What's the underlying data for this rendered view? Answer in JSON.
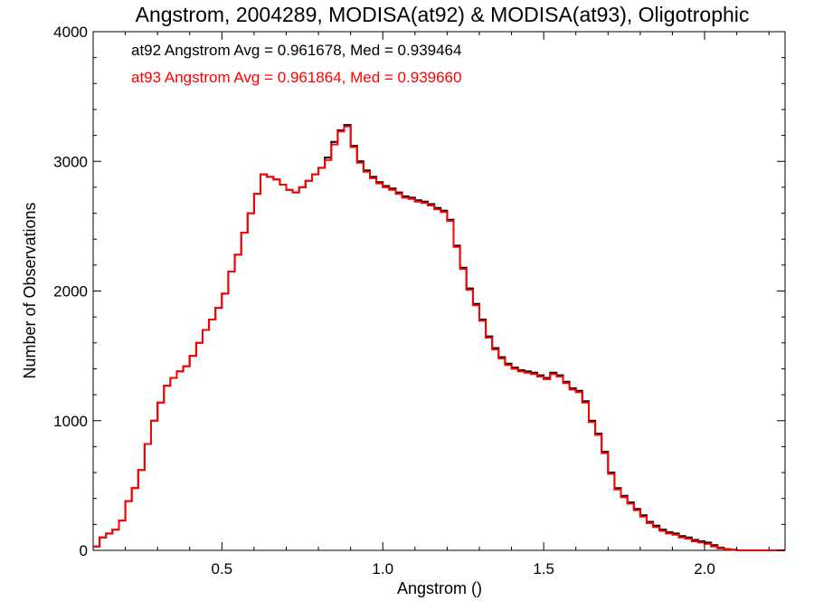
{
  "chart_data": {
    "type": "line",
    "step": true,
    "title": "Angstrom, 2004289, MODISA(at92) & MODISA(at93), Oligotrophic",
    "xlabel": "Angstrom ()",
    "ylabel": "Number of Observations",
    "xlim": [
      0.1,
      2.25
    ],
    "ylim": [
      0,
      4000
    ],
    "xticks": [
      0.5,
      1.0,
      1.5,
      2.0
    ],
    "xtick_labels": [
      "0.5",
      "1.0",
      "1.5",
      "2.0"
    ],
    "yticks": [
      0,
      1000,
      2000,
      3000,
      4000
    ],
    "ytick_labels": [
      "0",
      "1000",
      "2000",
      "3000",
      "4000"
    ],
    "grid": false,
    "annotations": [
      {
        "text": "at92 Angstrom Avg = 0.961678, Med = 0.939464",
        "color": "#000000"
      },
      {
        "text": "at93 Angstrom Avg = 0.961864, Med = 0.939660",
        "color": "#ff0000"
      }
    ],
    "x": [
      0.1,
      0.12,
      0.14,
      0.16,
      0.18,
      0.2,
      0.22,
      0.24,
      0.26,
      0.28,
      0.3,
      0.32,
      0.34,
      0.36,
      0.38,
      0.4,
      0.42,
      0.44,
      0.46,
      0.48,
      0.5,
      0.52,
      0.54,
      0.56,
      0.58,
      0.6,
      0.62,
      0.64,
      0.66,
      0.68,
      0.7,
      0.72,
      0.74,
      0.76,
      0.78,
      0.8,
      0.82,
      0.84,
      0.86,
      0.88,
      0.9,
      0.92,
      0.94,
      0.96,
      0.98,
      1.0,
      1.02,
      1.04,
      1.06,
      1.08,
      1.1,
      1.12,
      1.14,
      1.16,
      1.18,
      1.2,
      1.22,
      1.24,
      1.26,
      1.28,
      1.3,
      1.32,
      1.34,
      1.36,
      1.38,
      1.4,
      1.42,
      1.44,
      1.46,
      1.48,
      1.5,
      1.52,
      1.54,
      1.56,
      1.58,
      1.6,
      1.62,
      1.64,
      1.66,
      1.68,
      1.7,
      1.72,
      1.74,
      1.76,
      1.78,
      1.8,
      1.82,
      1.84,
      1.86,
      1.88,
      1.9,
      1.92,
      1.94,
      1.96,
      1.98,
      2.0,
      2.02,
      2.04,
      2.06,
      2.08,
      2.1,
      2.12,
      2.14,
      2.16,
      2.18,
      2.2,
      2.22,
      2.24
    ],
    "series": [
      {
        "name": "at92",
        "color": "#000000",
        "values": [
          30,
          100,
          130,
          160,
          230,
          380,
          480,
          620,
          820,
          1000,
          1140,
          1270,
          1330,
          1380,
          1420,
          1500,
          1600,
          1700,
          1780,
          1870,
          1980,
          2150,
          2280,
          2450,
          2600,
          2750,
          2900,
          2880,
          2860,
          2820,
          2780,
          2760,
          2800,
          2850,
          2900,
          2950,
          3030,
          3150,
          3240,
          3280,
          3120,
          3000,
          2930,
          2880,
          2840,
          2810,
          2790,
          2760,
          2730,
          2720,
          2700,
          2690,
          2670,
          2640,
          2620,
          2550,
          2350,
          2180,
          2020,
          1900,
          1780,
          1650,
          1560,
          1490,
          1440,
          1410,
          1390,
          1380,
          1370,
          1350,
          1330,
          1370,
          1350,
          1300,
          1250,
          1230,
          1150,
          1000,
          900,
          760,
          600,
          480,
          420,
          370,
          320,
          270,
          220,
          190,
          160,
          140,
          130,
          110,
          100,
          80,
          70,
          60,
          40,
          20,
          10,
          5,
          0,
          0,
          0,
          0,
          0,
          0,
          0,
          0
        ]
      },
      {
        "name": "at93",
        "color": "#ff0000",
        "values": [
          30,
          100,
          130,
          160,
          230,
          380,
          480,
          620,
          820,
          1000,
          1140,
          1270,
          1330,
          1380,
          1420,
          1500,
          1600,
          1700,
          1780,
          1870,
          1980,
          2150,
          2280,
          2450,
          2600,
          2750,
          2900,
          2880,
          2860,
          2820,
          2780,
          2760,
          2800,
          2850,
          2900,
          2950,
          3010,
          3130,
          3230,
          3270,
          3110,
          2990,
          2920,
          2870,
          2830,
          2800,
          2780,
          2750,
          2720,
          2710,
          2690,
          2680,
          2660,
          2630,
          2610,
          2540,
          2340,
          2170,
          2010,
          1890,
          1770,
          1640,
          1550,
          1480,
          1430,
          1400,
          1380,
          1370,
          1360,
          1340,
          1320,
          1360,
          1340,
          1290,
          1240,
          1220,
          1140,
          990,
          890,
          750,
          590,
          470,
          410,
          360,
          310,
          260,
          210,
          180,
          150,
          130,
          120,
          100,
          90,
          70,
          60,
          50,
          30,
          15,
          8,
          3,
          0,
          0,
          0,
          0,
          0,
          0,
          0,
          0
        ]
      }
    ]
  }
}
